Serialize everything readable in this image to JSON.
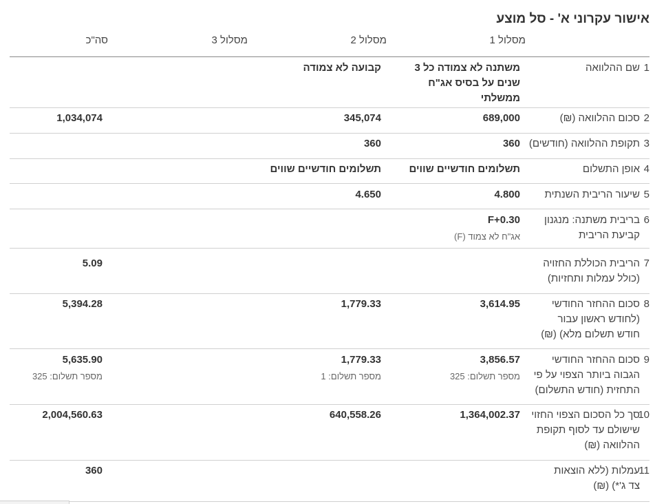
{
  "title": "אישור עקרוני א' - סל מוצע",
  "columns": [
    "מסלול 1",
    "מסלול 2",
    "מסלול 3",
    "סה\"כ"
  ],
  "rows": [
    {
      "num": "1",
      "label": "שם ההלוואה",
      "t1": "משתנה לא צמודה כל 3 שנים על בסיס אג\"ח ממשלתי",
      "t1_sub": "",
      "t2": "קבועה לא צמודה",
      "t2_sub": "",
      "total": "",
      "total_sub": ""
    },
    {
      "num": "2",
      "label": "סכום ההלוואה (₪)",
      "t1": "689,000",
      "t1_sub": "",
      "t2": "345,074",
      "t2_sub": "",
      "total": "1,034,074",
      "total_sub": ""
    },
    {
      "num": "3",
      "label": "תקופת ההלוואה (חודשים)",
      "t1": "360",
      "t1_sub": "",
      "t2": "360",
      "t2_sub": "",
      "total": "",
      "total_sub": ""
    },
    {
      "num": "4",
      "label": "אופן התשלום",
      "t1": "תשלומים חודשיים שווים",
      "t1_sub": "",
      "t2": "תשלומים חודשיים שווים",
      "t2_sub": "",
      "total": "",
      "total_sub": ""
    },
    {
      "num": "5",
      "label": "שיעור הריבית השנתית",
      "t1": "4.800",
      "t1_sub": "",
      "t2": "4.650",
      "t2_sub": "",
      "total": "",
      "total_sub": ""
    },
    {
      "num": "6",
      "label": "בריבית משתנה: מנגנון קביעת הריבית",
      "t1": "F+0.30",
      "t1_sub": "אג\"ח לא צמוד (F)",
      "t2": "",
      "t2_sub": "",
      "total": "",
      "total_sub": ""
    },
    {
      "num": "7",
      "label": "הריבית הכוללת החזויה (כולל עמלות ותחזיות)",
      "t1": "",
      "t1_sub": "",
      "t2": "",
      "t2_sub": "",
      "total": "5.09",
      "total_sub": ""
    },
    {
      "num": "8",
      "label": "סכום ההחזר החודשי (לחודש ראשון עבור חודש תשלום מלא) (₪)",
      "t1": "3,614.95",
      "t1_sub": "",
      "t2": "1,779.33",
      "t2_sub": "",
      "total": "5,394.28",
      "total_sub": ""
    },
    {
      "num": "9",
      "label": "סכום ההחזר החודשי הגבוה ביותר הצפוי על פי התחזית (חודש התשלום)",
      "t1": "3,856.57",
      "t1_sub": "מספר תשלום: 325",
      "t2": "1,779.33",
      "t2_sub": "מספר תשלום: 1",
      "total": "5,635.90",
      "total_sub": "מספר תשלום: 325"
    },
    {
      "num": "10",
      "label": "סך כל הסכום הצפוי החזוי שישולם עד לסוף תקופת ההלוואה (₪)",
      "t1": "1,364,002.37",
      "t1_sub": "",
      "t2": "640,558.26",
      "t2_sub": "",
      "total": "2,004,560.63",
      "total_sub": ""
    },
    {
      "num": "11",
      "label": "עמלות (ללא הוצאות צד ג'*) (₪)",
      "t1": "",
      "t1_sub": "",
      "t2": "",
      "t2_sub": "",
      "total": "360",
      "total_sub": ""
    }
  ]
}
